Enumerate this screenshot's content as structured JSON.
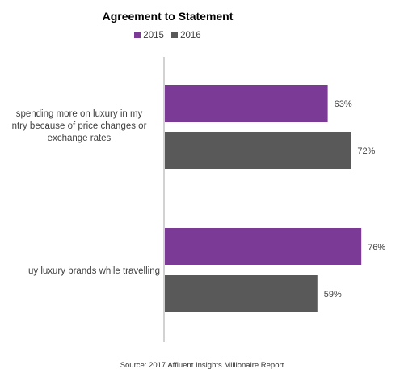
{
  "chart_data": {
    "type": "bar",
    "orientation": "horizontal",
    "title": "Agreement to Statement",
    "categories": [
      "spending more on luxury in my\nntry because of price changes or\nexchange rates",
      "uy luxury brands while travelling"
    ],
    "series": [
      {
        "name": "2015",
        "values": [
          63,
          76
        ],
        "color": "#7b3a96"
      },
      {
        "name": "2016",
        "values": [
          72,
          59
        ],
        "color": "#595959"
      }
    ],
    "value_suffix": "%",
    "xlim": [
      0,
      100
    ],
    "legend_position": "top",
    "grid": false
  },
  "source": "Source: 2017 Affluent Insights Millionaire Report"
}
